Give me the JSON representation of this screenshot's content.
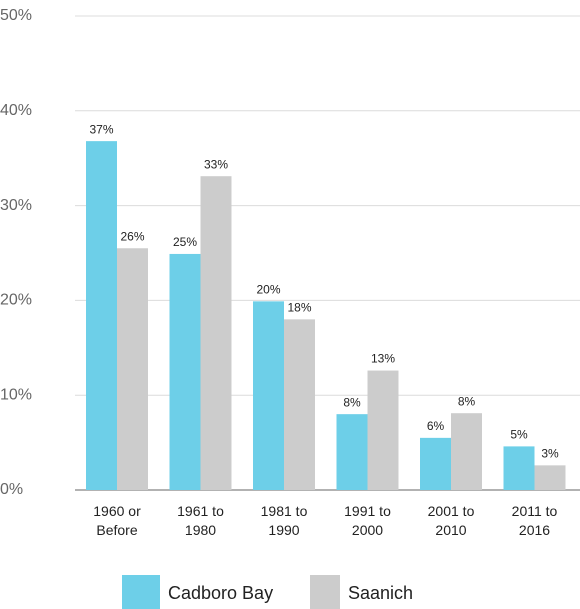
{
  "chart_data": {
    "type": "bar",
    "categories": [
      "1960 or Before",
      "1961 to 1980",
      "1981 to 1990",
      "1991 to 2000",
      "2001 to 2010",
      "2011 to 2016"
    ],
    "series": [
      {
        "name": "Cadboro Bay",
        "color": "#6dcfe8",
        "values": [
          36.8,
          24.9,
          19.9,
          8.0,
          5.5,
          4.6
        ],
        "value_labels": [
          "37%",
          "25%",
          "20%",
          "8%",
          "6%",
          "5%"
        ]
      },
      {
        "name": "Saanich",
        "color": "#cccccc",
        "values": [
          25.5,
          33.1,
          18.0,
          12.6,
          8.1,
          2.6
        ],
        "value_labels": [
          "26%",
          "33%",
          "18%",
          "13%",
          "8%",
          "3%"
        ]
      }
    ],
    "ylim": [
      0,
      50
    ],
    "yticks": [
      {
        "value": 0,
        "label": "0%"
      },
      {
        "value": 10,
        "label": "10%"
      },
      {
        "value": 20,
        "label": "20%"
      },
      {
        "value": 30,
        "label": "30%"
      },
      {
        "value": 40,
        "label": "40%"
      },
      {
        "value": 50,
        "label": "50%"
      }
    ],
    "grid": true
  }
}
